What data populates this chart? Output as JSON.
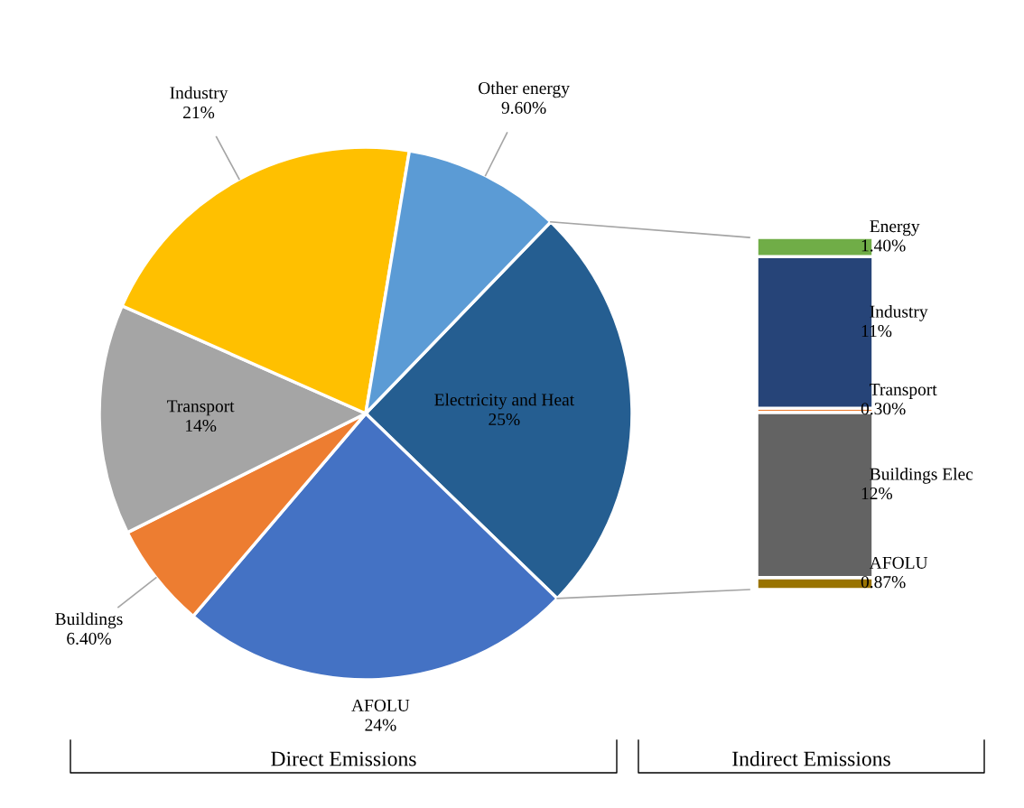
{
  "chart_data": [
    {
      "type": "pie",
      "categories": [
        "Electricity and Heat",
        "AFOLU",
        "Buildings",
        "Transport",
        "Industry",
        "Other energy"
      ],
      "values": [
        25,
        24,
        6.4,
        14,
        21,
        9.6
      ],
      "colors": [
        "#255e91",
        "#4472c4",
        "#ed7d31",
        "#a5a5a5",
        "#ffc000",
        "#5b9bd5"
      ],
      "value_labels": [
        "25%",
        "24%",
        "6.40%",
        "14%",
        "21%",
        "9.60%"
      ],
      "annotations": [
        "Direct Emissions"
      ]
    },
    {
      "type": "bar",
      "stacked": true,
      "categories": [
        null
      ],
      "series": [
        {
          "name": "AFOLU",
          "color": "#997300",
          "values": [
            0.87
          ],
          "value_labels": [
            "0.87%"
          ]
        },
        {
          "name": "Buildings Elec",
          "color": "#636363",
          "values": [
            12
          ],
          "value_labels": [
            "12%"
          ]
        },
        {
          "name": "Transport",
          "color": "#ed7d31",
          "values": [
            0.3
          ],
          "value_labels": [
            "0.30%"
          ]
        },
        {
          "name": "Industry",
          "color": "#264478",
          "values": [
            11
          ],
          "value_labels": [
            "11%"
          ]
        },
        {
          "name": "Energy",
          "color": "#70ad47",
          "values": [
            1.4
          ],
          "value_labels": [
            "1.40%"
          ]
        }
      ],
      "annotations": [
        "Indirect Emissions"
      ]
    }
  ]
}
